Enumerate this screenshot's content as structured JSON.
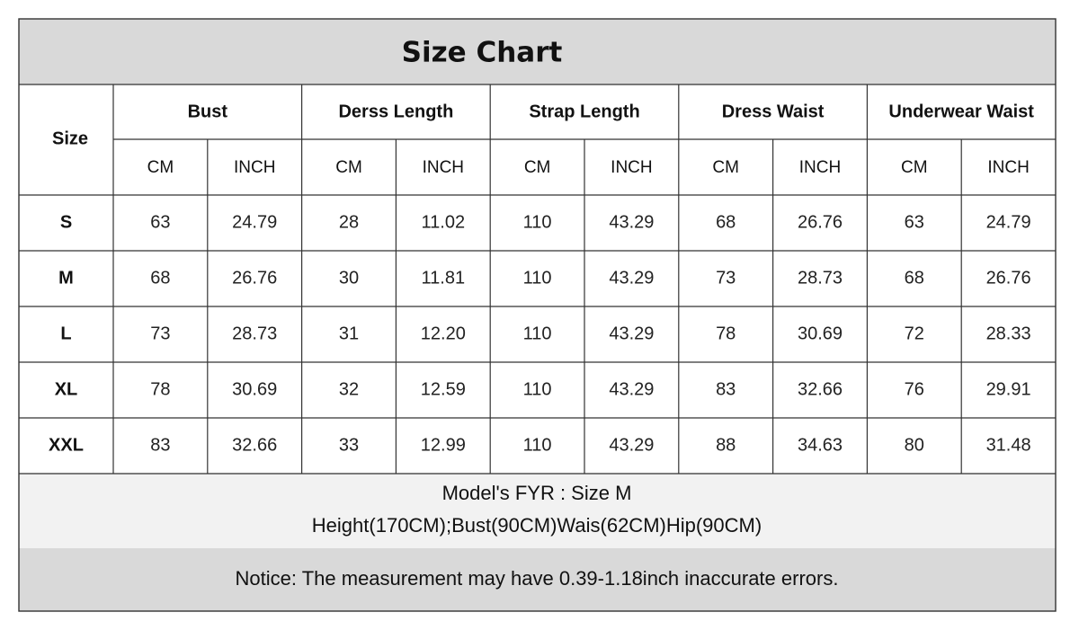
{
  "title": "Size Chart",
  "table": {
    "size_header": "Size",
    "groups": [
      {
        "name": "Bust",
        "units": [
          "CM",
          "INCH"
        ]
      },
      {
        "name": "Derss Length",
        "units": [
          "CM",
          "INCH"
        ]
      },
      {
        "name": "Strap Length",
        "units": [
          "CM",
          "INCH"
        ]
      },
      {
        "name": "Dress Waist",
        "units": [
          "CM",
          "INCH"
        ]
      },
      {
        "name": "Underwear Waist",
        "units": [
          "CM",
          "INCH"
        ]
      }
    ],
    "rows": [
      [
        "S",
        "63",
        "24.79",
        "28",
        "11.02",
        "110",
        "43.29",
        "68",
        "26.76",
        "63",
        "24.79"
      ],
      [
        "M",
        "68",
        "26.76",
        "30",
        "11.81",
        "110",
        "43.29",
        "73",
        "28.73",
        "68",
        "26.76"
      ],
      [
        "L",
        "73",
        "28.73",
        "31",
        "12.20",
        "110",
        "43.29",
        "78",
        "30.69",
        "72",
        "28.33"
      ],
      [
        "XL",
        "78",
        "30.69",
        "32",
        "12.59",
        "110",
        "43.29",
        "83",
        "32.66",
        "76",
        "29.91"
      ],
      [
        "XXL",
        "83",
        "32.66",
        "33",
        "12.99",
        "110",
        "43.29",
        "88",
        "34.63",
        "80",
        "31.48"
      ]
    ]
  },
  "model_note": [
    "Model's FYR : Size M",
    "Height(170CM);Bust(90CM)Wais(62CM)Hip(90CM)"
  ],
  "notice": "Notice: The measurement may have 0.39-1.18inch inaccurate errors."
}
